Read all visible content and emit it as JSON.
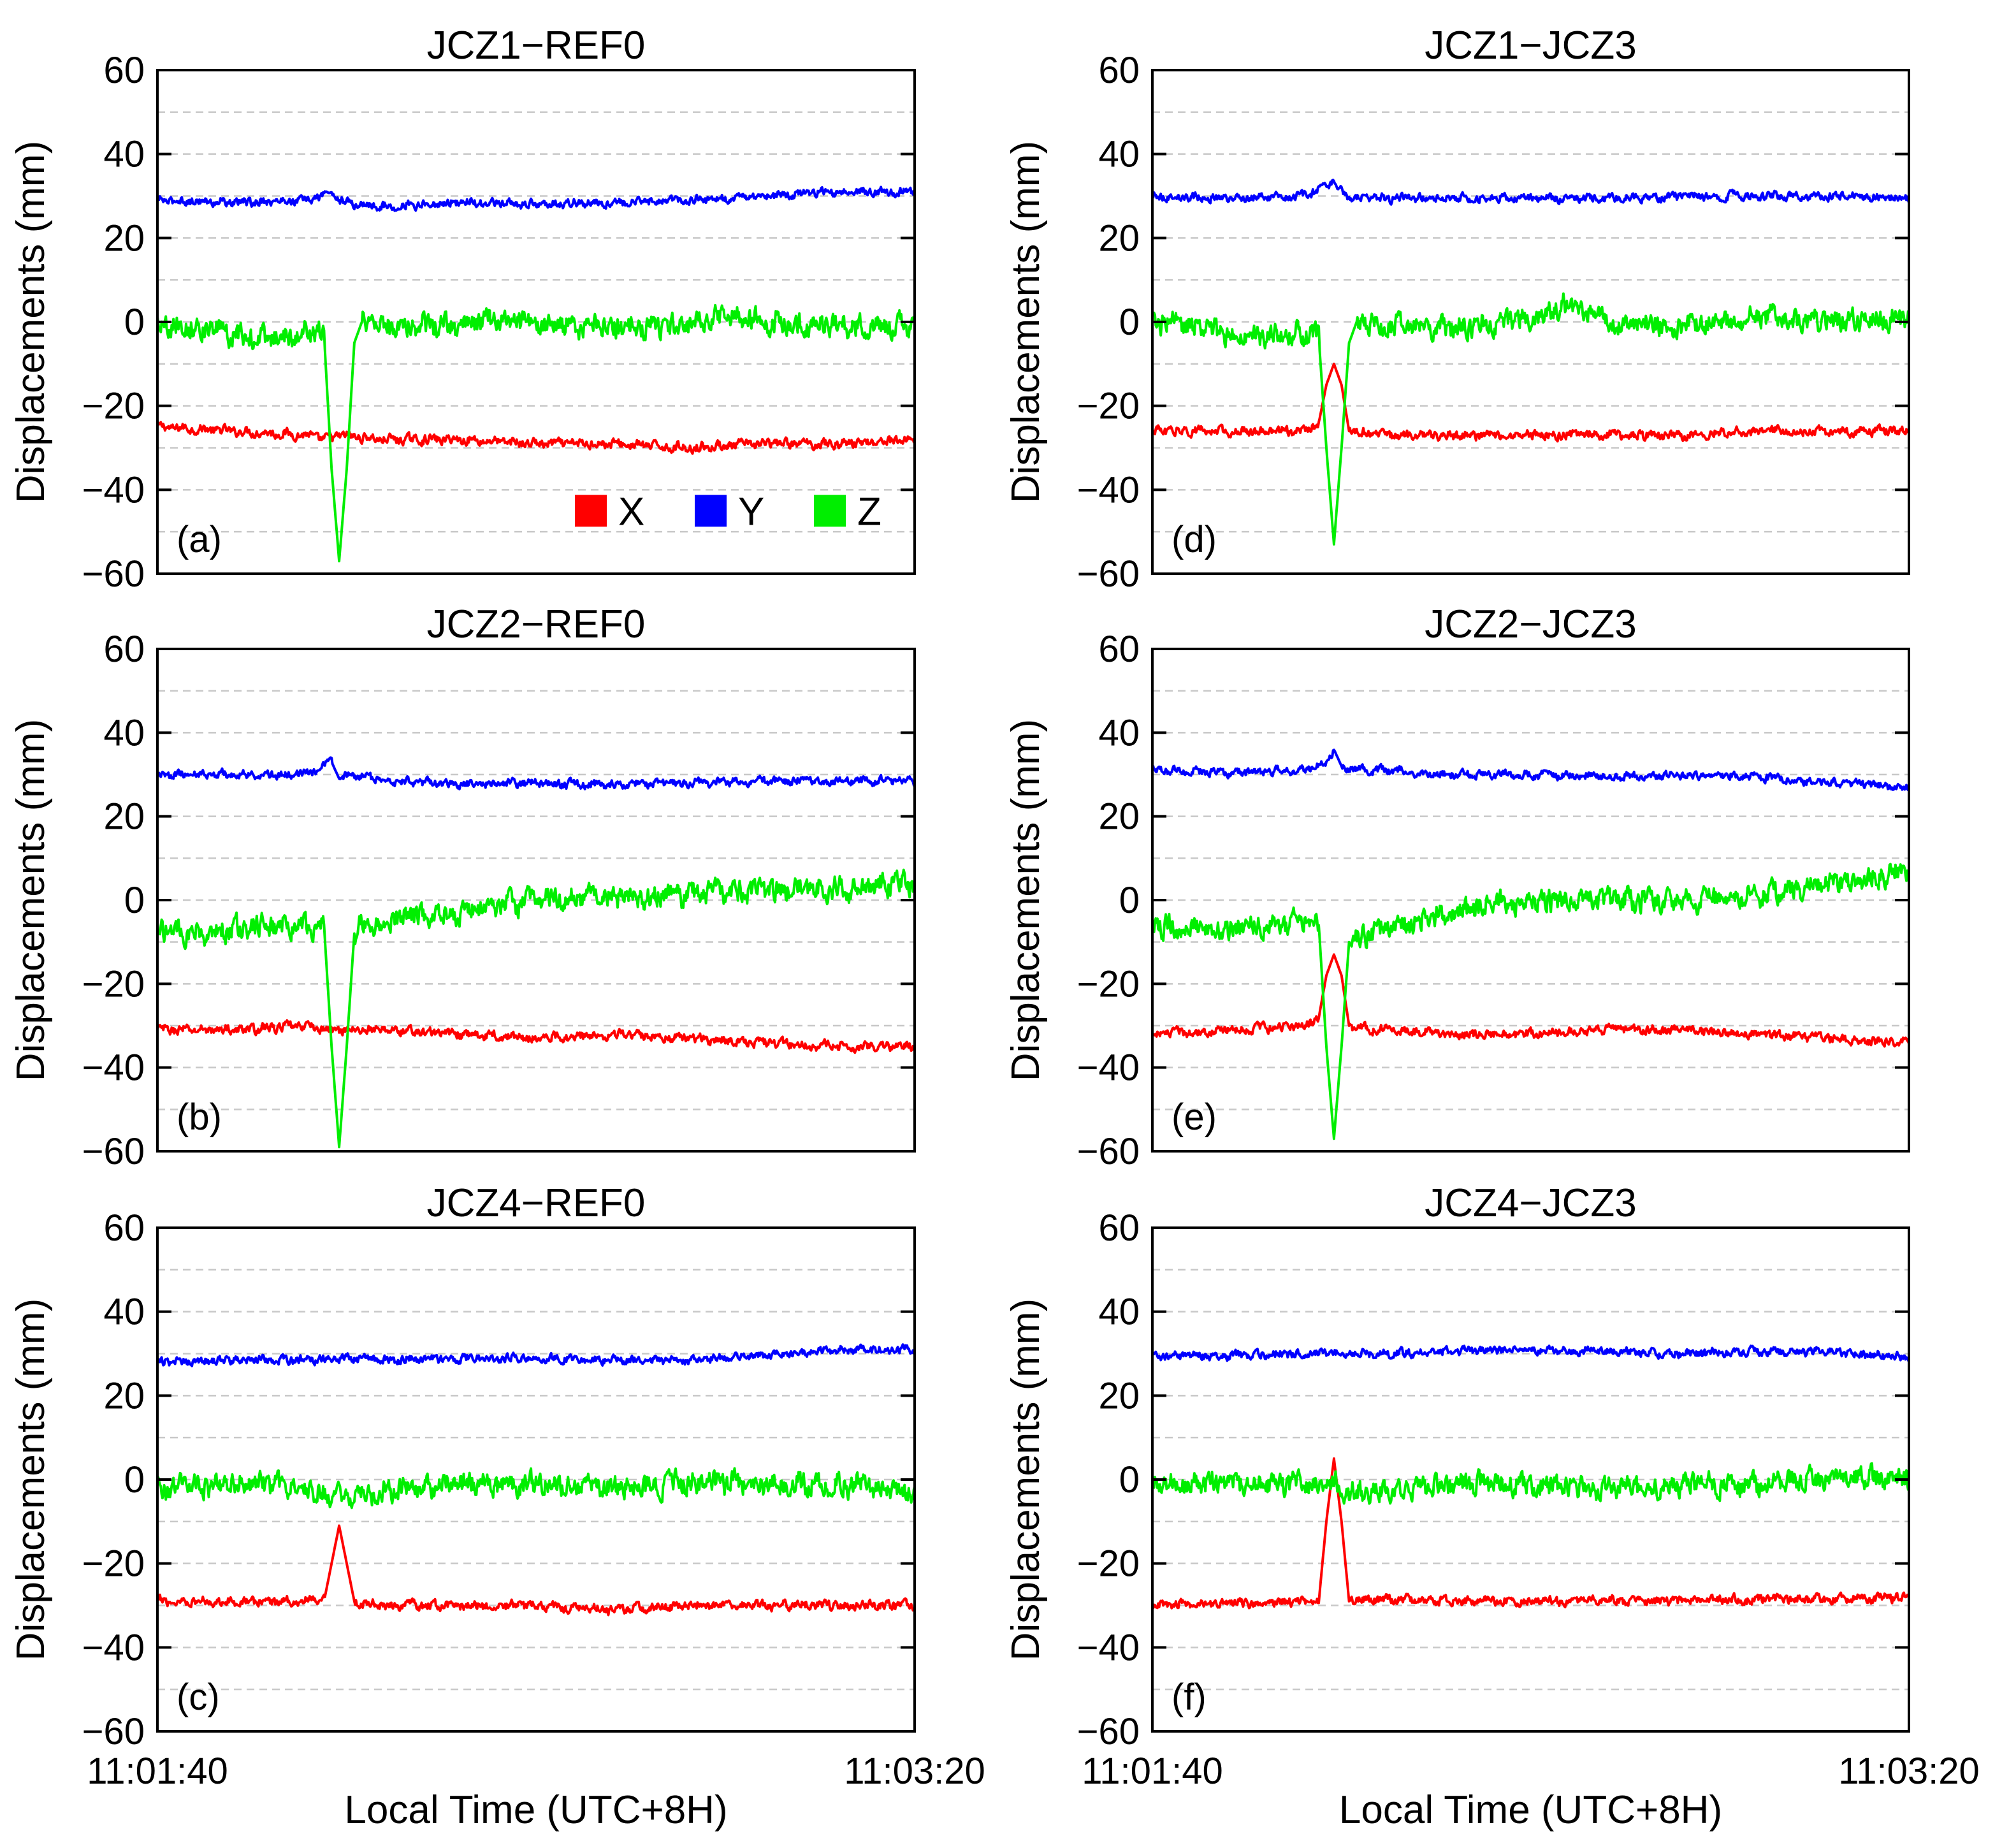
{
  "chart_data": {
    "type": "line",
    "figure": {
      "xlabel": "Local Time (UTC+8H)",
      "x_start_label": "11:01:40",
      "x_end_label": "11:03:20",
      "xlim": [
        0,
        100
      ],
      "x_unit": "seconds since 11:01:40",
      "ylabel": "Displacements (mm)",
      "ylim": [
        -60,
        60
      ],
      "y_ticks": [
        60,
        40,
        20,
        0,
        -20,
        -40,
        -60
      ],
      "y_tick_labels": [
        "60",
        "40",
        "20",
        "0",
        "−20",
        "−40",
        "−60"
      ],
      "grid": "dashed horizontal every 10 mm",
      "legend": {
        "placement": "bottom-right of panel (a)",
        "entries": [
          {
            "label": "X",
            "color": "#ff0000"
          },
          {
            "label": "Y",
            "color": "#0000ff"
          },
          {
            "label": "Z",
            "color": "#00ee00"
          }
        ]
      }
    },
    "panels": [
      {
        "id": "a",
        "tag": "(a)",
        "title": "JCZ1−REF0",
        "series": [
          {
            "name": "X",
            "color": "#ff0000",
            "x": [
              0,
              10,
              20,
              22,
              24,
              30,
              40,
              50,
              60,
              70,
              80,
              90,
              100
            ],
            "values": [
              -25,
              -26,
              -27,
              -28,
              -27,
              -28,
              -28,
              -29,
              -29,
              -30,
              -29,
              -29,
              -28
            ]
          },
          {
            "name": "Y",
            "color": "#0000ff",
            "x": [
              0,
              10,
              20,
              23,
              24,
              26,
              30,
              40,
              50,
              60,
              70,
              80,
              90,
              100
            ],
            "values": [
              29,
              28.5,
              29,
              31,
              29,
              28,
              27.5,
              28.5,
              28,
              28.5,
              29,
              30,
              31,
              31
            ]
          },
          {
            "name": "Z",
            "color": "#00ee00",
            "x": [
              0,
              5,
              10,
              15,
              20,
              22,
              23,
              24,
              25,
              26,
              27,
              30,
              40,
              45,
              50,
              60,
              70,
              75,
              80,
              90,
              100
            ],
            "values": [
              0,
              -1,
              -3,
              -4,
              -2,
              -3,
              -35,
              -57,
              -35,
              -5,
              0,
              -1,
              -1,
              1,
              -1,
              -1,
              -1,
              2,
              0,
              -1,
              -1
            ]
          }
        ]
      },
      {
        "id": "b",
        "tag": "(b)",
        "title": "JCZ2−REF0",
        "series": [
          {
            "name": "X",
            "color": "#ff0000",
            "x": [
              0,
              10,
              20,
              22,
              24,
              30,
              40,
              50,
              60,
              70,
              80,
              90,
              100
            ],
            "values": [
              -31,
              -31,
              -30,
              -31,
              -31,
              -31,
              -32,
              -33,
              -32,
              -33,
              -34,
              -35,
              -35
            ]
          },
          {
            "name": "Y",
            "color": "#0000ff",
            "x": [
              0,
              10,
              20,
              23,
              24,
              26,
              30,
              40,
              50,
              60,
              70,
              80,
              90,
              100
            ],
            "values": [
              30,
              30,
              30,
              33,
              29,
              30,
              28.5,
              27.5,
              28,
              27.5,
              28,
              28.5,
              28.5,
              28.5
            ]
          },
          {
            "name": "Z",
            "color": "#00ee00",
            "x": [
              0,
              5,
              10,
              15,
              20,
              22,
              23,
              24,
              25,
              26,
              27,
              30,
              40,
              45,
              50,
              60,
              70,
              75,
              80,
              90,
              100
            ],
            "values": [
              -7,
              -8,
              -7,
              -6,
              -6,
              -6,
              -35,
              -59,
              -35,
              -8,
              -6,
              -5,
              -3,
              -1,
              0,
              1,
              1,
              2,
              2,
              3,
              4
            ]
          }
        ]
      },
      {
        "id": "c",
        "tag": "(c)",
        "title": "JCZ4−REF0",
        "series": [
          {
            "name": "X",
            "color": "#ff0000",
            "x": [
              0,
              10,
              20,
              22,
              23,
              24,
              25,
              26,
              30,
              40,
              50,
              60,
              70,
              80,
              90,
              100
            ],
            "values": [
              -29,
              -29,
              -29,
              -29,
              -20,
              -11,
              -20,
              -29,
              -30,
              -30,
              -30,
              -31,
              -30,
              -30,
              -30,
              -30
            ]
          },
          {
            "name": "Y",
            "color": "#0000ff",
            "x": [
              0,
              10,
              20,
              24,
              30,
              40,
              50,
              60,
              70,
              80,
              90,
              100
            ],
            "values": [
              28,
              28.5,
              28.5,
              29,
              28.5,
              29,
              29,
              28.5,
              28.5,
              29.5,
              31,
              31
            ]
          },
          {
            "name": "Z",
            "color": "#00ee00",
            "x": [
              0,
              10,
              20,
              24,
              30,
              40,
              50,
              60,
              70,
              80,
              90,
              100
            ],
            "values": [
              -2,
              -1,
              -2,
              -4,
              -3,
              -1,
              -1,
              -2,
              -1,
              -1,
              -1,
              -3
            ]
          }
        ]
      },
      {
        "id": "d",
        "tag": "(d)",
        "title": "JCZ1−JCZ3",
        "series": [
          {
            "name": "X",
            "color": "#ff0000",
            "x": [
              0,
              10,
              20,
              22,
              23,
              24,
              25,
              26,
              30,
              40,
              50,
              60,
              70,
              80,
              90,
              100
            ],
            "values": [
              -26,
              -26,
              -26,
              -24,
              -15,
              -10,
              -15,
              -26,
              -27,
              -27,
              -27,
              -27,
              -27,
              -26,
              -26,
              -26
            ]
          },
          {
            "name": "Y",
            "color": "#0000ff",
            "x": [
              0,
              10,
              20,
              23,
              24,
              25,
              26,
              30,
              40,
              50,
              60,
              70,
              80,
              90,
              100
            ],
            "values": [
              30,
              29.5,
              30,
              32,
              34,
              31,
              29.5,
              29.5,
              29.5,
              29.5,
              29.5,
              30,
              30,
              30,
              29.5
            ]
          },
          {
            "name": "Z",
            "color": "#00ee00",
            "x": [
              0,
              5,
              10,
              15,
              20,
              22,
              23,
              24,
              25,
              26,
              27,
              30,
              40,
              50,
              55,
              60,
              70,
              80,
              90,
              100
            ],
            "values": [
              0,
              -1,
              -3,
              -4,
              -3,
              -4,
              -30,
              -53,
              -30,
              -5,
              0,
              -1,
              -1,
              1,
              4,
              0,
              -1,
              1,
              0,
              1
            ]
          }
        ]
      },
      {
        "id": "e",
        "tag": "(e)",
        "title": "JCZ2−JCZ3",
        "series": [
          {
            "name": "X",
            "color": "#ff0000",
            "x": [
              0,
              10,
              20,
              22,
              23,
              24,
              25,
              26,
              30,
              40,
              50,
              60,
              70,
              80,
              90,
              100
            ],
            "values": [
              -32,
              -31,
              -30,
              -28,
              -18,
              -13,
              -18,
              -30,
              -31,
              -32,
              -32,
              -31,
              -31,
              -32,
              -33,
              -34
            ]
          },
          {
            "name": "Y",
            "color": "#0000ff",
            "x": [
              0,
              10,
              20,
              23,
              24,
              25,
              26,
              30,
              40,
              50,
              60,
              70,
              80,
              90,
              100
            ],
            "values": [
              31,
              30.5,
              31,
              33,
              36,
              32,
              31.5,
              31,
              30,
              30,
              29.5,
              30,
              29.5,
              28,
              27
            ]
          },
          {
            "name": "Z",
            "color": "#00ee00",
            "x": [
              0,
              5,
              10,
              15,
              20,
              22,
              23,
              24,
              25,
              26,
              27,
              30,
              40,
              45,
              50,
              60,
              70,
              80,
              90,
              100
            ],
            "values": [
              -6,
              -7,
              -7,
              -6,
              -5,
              -6,
              -35,
              -57,
              -35,
              -10,
              -9,
              -7,
              -3,
              -1,
              0,
              0,
              0,
              1,
              4,
              7
            ]
          }
        ]
      },
      {
        "id": "f",
        "tag": "(f)",
        "title": "JCZ4−JCZ3",
        "series": [
          {
            "name": "X",
            "color": "#ff0000",
            "x": [
              0,
              10,
              20,
              22,
              23,
              24,
              25,
              26,
              30,
              40,
              50,
              60,
              70,
              80,
              90,
              100
            ],
            "values": [
              -30,
              -29.5,
              -29,
              -29,
              -10,
              5,
              -10,
              -29,
              -28.5,
              -29,
              -29,
              -29,
              -29,
              -28.5,
              -28.5,
              -28
            ]
          },
          {
            "name": "Y",
            "color": "#0000ff",
            "x": [
              0,
              10,
              20,
              24,
              30,
              40,
              50,
              60,
              70,
              80,
              90,
              100
            ],
            "values": [
              29.5,
              29.5,
              30,
              30,
              30,
              30.5,
              31,
              30.5,
              30,
              30.5,
              30.5,
              29
            ]
          },
          {
            "name": "Z",
            "color": "#00ee00",
            "x": [
              0,
              10,
              20,
              24,
              26,
              30,
              40,
              50,
              60,
              70,
              80,
              90,
              100
            ],
            "values": [
              -1,
              -1,
              -1,
              -1,
              -3,
              -3,
              -1,
              -1,
              -2,
              -1,
              -1,
              1,
              0
            ]
          }
        ]
      }
    ]
  }
}
